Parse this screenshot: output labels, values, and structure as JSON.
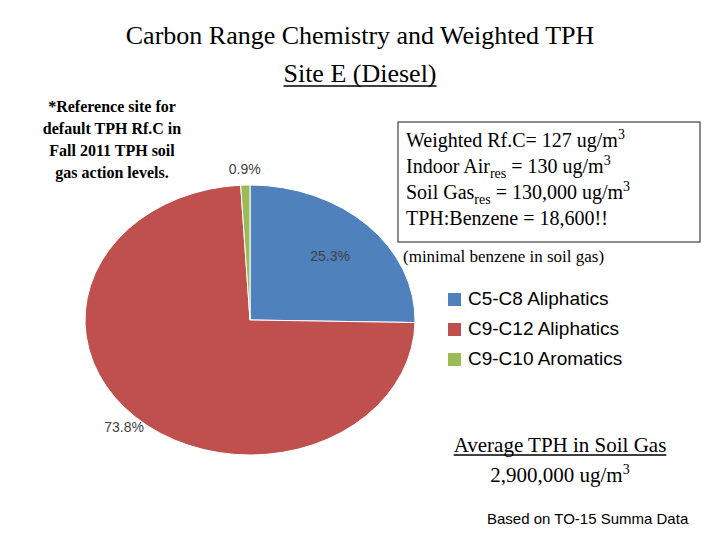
{
  "chart_data": {
    "type": "pie",
    "title": "Carbon Range Chemistry and Weighted TPH",
    "subtitle": "Site E (Diesel)",
    "categories": [
      "C5-C8 Aliphatics",
      "C9-C12 Aliphatics",
      "C9-C10 Aromatics"
    ],
    "values": [
      25.3,
      73.8,
      0.9
    ],
    "value_labels": [
      "25.3%",
      "73.8%",
      "0.9%"
    ],
    "colors": [
      "#4f81bd",
      "#c0504d",
      "#9bbb59"
    ],
    "data_labels": true,
    "legend": "right",
    "annotations": {
      "note": [
        "*Reference site for",
        "default TPH Rf.C in",
        "Fall 2011 TPH soil",
        "gas action levels."
      ],
      "box": [
        [
          {
            "text": "Weighted Rf.C= 127 ug/m"
          },
          {
            "sup": "3"
          }
        ],
        [
          {
            "text": "Indoor Air"
          },
          {
            "sub": "res"
          },
          {
            "text": " = 130 ug/m"
          },
          {
            "sup": "3"
          }
        ],
        [
          {
            "text": "Soil Gas"
          },
          {
            "sub": "res"
          },
          {
            "text": " = 130,000 ug/m"
          },
          {
            "sup": "3"
          }
        ],
        [
          {
            "text": "TPH:Benzene = 18,600!!"
          }
        ]
      ],
      "box_caption": "(minimal benzene in soil gas)",
      "average": [
        [
          {
            "text": "Average TPH in Soil Gas"
          }
        ],
        [
          {
            "text": "2,900,000 ug/m"
          },
          {
            "sup": "3"
          }
        ]
      ],
      "source": "Based on TO-15 Summa Data"
    }
  }
}
